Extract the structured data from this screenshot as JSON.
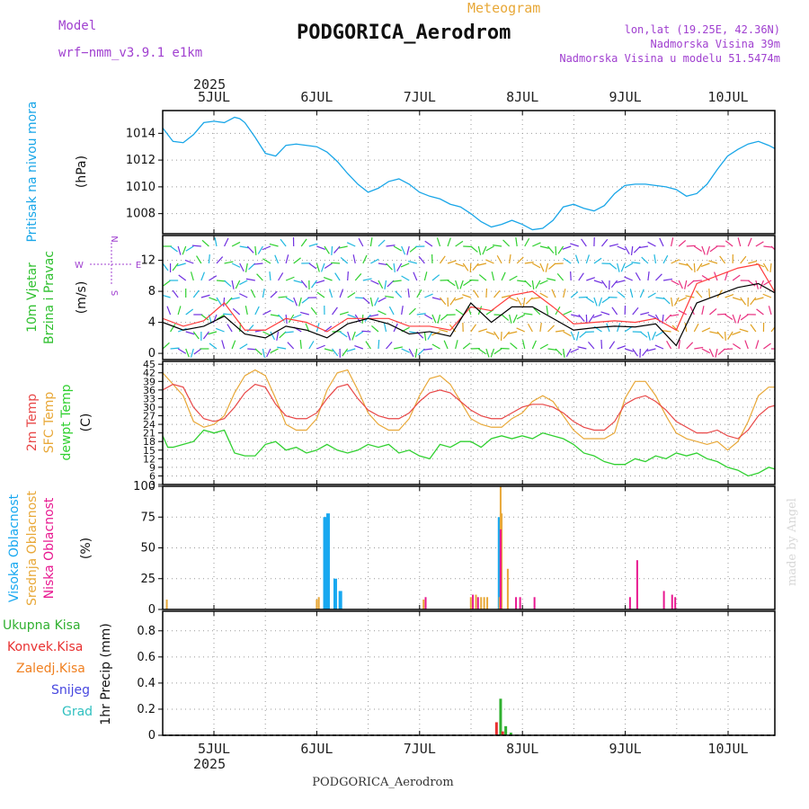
{
  "header": {
    "model_label": "Model",
    "model_value": "wrf−nmm_v3.9.1  e1km",
    "title": "PODGORICA_Aerodrom",
    "meteogram_label": "Meteogram",
    "coords": "lon,lat (19.25E, 42.36N)",
    "elev": "Nadmorska Visina 39m",
    "elev_model": "Nadmorska Visina u modelu 51.5474m",
    "year": "2025",
    "footer_title": "PODGORICA_Aerodrom",
    "watermark": "made by Angel"
  },
  "days": [
    "5JUL",
    "6JUL",
    "7JUL",
    "8JUL",
    "9JUL",
    "10JUL"
  ],
  "colors": {
    "pressure": "#19a6e8",
    "wind_speed": "#000000",
    "wind_gust": "#ff3c3c",
    "t2m": "#e84848",
    "sfc": "#e8a838",
    "dew": "#30d030",
    "high_cloud": "#18a8f0",
    "mid_cloud": "#e8a838",
    "low_cloud": "#e81890",
    "total_precip": "#30b030",
    "conv_precip": "#e83030",
    "freez_precip": "#f08020",
    "snow": "#4848e0",
    "grad": "#30c0c0"
  },
  "chart_data": [
    {
      "type": "line",
      "panel": "pressure",
      "ylabel_main": "Pritisak na nivou mora",
      "ylabel_unit": "(hPa)",
      "y_ticks": [
        "1008",
        "1010",
        "1012",
        "1014"
      ],
      "ylim": [
        1006.5,
        1015.7
      ],
      "x_days": [
        0.0,
        0.1,
        0.2,
        0.3,
        0.4,
        0.5,
        0.6,
        0.7,
        0.75,
        0.8,
        0.9,
        1.0,
        1.1,
        1.2,
        1.3,
        1.4,
        1.5,
        1.6,
        1.7,
        1.8,
        1.9,
        2.0,
        2.1,
        2.2,
        2.3,
        2.4,
        2.5,
        2.6,
        2.7,
        2.8,
        2.9,
        3.0,
        3.1,
        3.2,
        3.3,
        3.4,
        3.5,
        3.6,
        3.7,
        3.8,
        3.9,
        4.0,
        4.1,
        4.2,
        4.3,
        4.4,
        4.5,
        4.6,
        4.7,
        4.8,
        4.9,
        5.0,
        5.1,
        5.2,
        5.3,
        5.4,
        5.5,
        5.6,
        5.7,
        5.8,
        5.9,
        6.0
      ],
      "values": [
        1014.4,
        1013.4,
        1013.3,
        1013.9,
        1014.8,
        1014.9,
        1014.8,
        1015.2,
        1015.1,
        1014.8,
        1013.7,
        1012.5,
        1012.3,
        1013.1,
        1013.2,
        1013.1,
        1013.0,
        1012.6,
        1011.9,
        1011.0,
        1010.2,
        1009.6,
        1009.9,
        1010.4,
        1010.6,
        1010.2,
        1009.6,
        1009.3,
        1009.1,
        1008.7,
        1008.5,
        1008.0,
        1007.4,
        1007.0,
        1007.2,
        1007.5,
        1007.2,
        1006.8,
        1006.9,
        1007.5,
        1008.5,
        1008.7,
        1008.4,
        1008.2,
        1008.6,
        1009.5,
        1010.1,
        1010.2,
        1010.2,
        1010.1,
        1010.0,
        1009.8,
        1009.3,
        1009.5,
        1010.2,
        1011.3,
        1012.3,
        1012.8,
        1013.2,
        1013.4,
        1013.1,
        1012.7
      ]
    },
    {
      "type": "line",
      "panel": "wind",
      "ylabel_main": "10m Vjetar",
      "ylabel_sub": "Brzina i Pravac",
      "ylabel_unit": "(m/s)",
      "compass": {
        "north": "N",
        "south": "S",
        "east": "E",
        "west": "W"
      },
      "y_ticks": [
        "0",
        "4",
        "8",
        "12"
      ],
      "ylim": [
        -0.8,
        15.2
      ],
      "series": [
        {
          "name": "speed",
          "x_days": [
            0.0,
            0.2,
            0.4,
            0.6,
            0.8,
            1.0,
            1.2,
            1.4,
            1.6,
            1.8,
            2.0,
            2.2,
            2.4,
            2.6,
            2.8,
            3.0,
            3.2,
            3.4,
            3.6,
            3.8,
            4.0,
            4.2,
            4.4,
            4.6,
            4.8,
            5.0,
            5.2,
            5.4,
            5.6,
            5.8,
            6.0
          ],
          "values": [
            4.0,
            3.0,
            3.5,
            4.8,
            2.5,
            2.0,
            3.5,
            3.0,
            2.0,
            3.8,
            4.5,
            3.8,
            2.5,
            2.8,
            2.2,
            6.5,
            4.0,
            6.0,
            6.0,
            4.5,
            3.0,
            3.3,
            3.5,
            3.4,
            3.8,
            1.0,
            6.5,
            7.5,
            8.5,
            9.0,
            7.5
          ]
        },
        {
          "name": "gust",
          "x_days": [
            0.0,
            0.2,
            0.4,
            0.6,
            0.8,
            1.0,
            1.2,
            1.4,
            1.6,
            1.8,
            2.0,
            2.2,
            2.4,
            2.6,
            2.8,
            3.0,
            3.2,
            3.4,
            3.6,
            3.8,
            4.0,
            4.2,
            4.4,
            4.6,
            4.8,
            5.0,
            5.2,
            5.4,
            5.6,
            5.8,
            6.0
          ],
          "values": [
            4.5,
            3.5,
            4.2,
            6.5,
            3.0,
            3.0,
            4.5,
            4.0,
            2.8,
            4.5,
            4.5,
            4.5,
            3.5,
            3.5,
            3.0,
            6.0,
            5.5,
            7.5,
            8.0,
            6.0,
            3.8,
            4.0,
            4.2,
            4.0,
            4.5,
            3.0,
            9.0,
            10.0,
            11.0,
            11.5,
            7.0
          ]
        }
      ]
    },
    {
      "type": "line",
      "panel": "temperature",
      "ylabel_1": "2m Temp",
      "ylabel_2": "SFC Temp",
      "ylabel_3": "dewpt Temp",
      "ylabel_unit": "(C)",
      "y_ticks": [
        "3",
        "6",
        "9",
        "12",
        "15",
        "18",
        "21",
        "24",
        "27",
        "30",
        "33",
        "36",
        "39",
        "42",
        "45"
      ],
      "ylim": [
        3,
        46
      ],
      "series": [
        {
          "name": "t2m",
          "x_days": [
            0.0,
            0.1,
            0.2,
            0.3,
            0.4,
            0.5,
            0.6,
            0.7,
            0.8,
            0.9,
            1.0,
            1.1,
            1.2,
            1.3,
            1.4,
            1.5,
            1.6,
            1.7,
            1.8,
            1.9,
            2.0,
            2.1,
            2.2,
            2.3,
            2.4,
            2.5,
            2.6,
            2.7,
            2.8,
            2.9,
            3.0,
            3.1,
            3.2,
            3.3,
            3.4,
            3.5,
            3.6,
            3.7,
            3.8,
            3.9,
            4.0,
            4.1,
            4.2,
            4.3,
            4.4,
            4.5,
            4.6,
            4.7,
            4.8,
            4.9,
            5.0,
            5.1,
            5.2,
            5.3,
            5.4,
            5.5,
            5.6,
            5.7,
            5.8,
            5.9,
            6.0
          ],
          "values": [
            36,
            38,
            37,
            30,
            26,
            25,
            26,
            30,
            35,
            38,
            37,
            31,
            27,
            26,
            26,
            28,
            33,
            37,
            38,
            33,
            29,
            27,
            26,
            26,
            28,
            32,
            35,
            36,
            35,
            32,
            29,
            27,
            26,
            26,
            28,
            30,
            31,
            31,
            30,
            28,
            25,
            23,
            22,
            22,
            25,
            31,
            33,
            34,
            32,
            29,
            25,
            23,
            21,
            21,
            22,
            20,
            19,
            22,
            27,
            30,
            31
          ]
        },
        {
          "name": "sfc",
          "x_days": [
            0.0,
            0.1,
            0.2,
            0.3,
            0.4,
            0.5,
            0.6,
            0.7,
            0.8,
            0.9,
            1.0,
            1.1,
            1.2,
            1.3,
            1.4,
            1.5,
            1.6,
            1.7,
            1.8,
            1.9,
            2.0,
            2.1,
            2.2,
            2.3,
            2.4,
            2.5,
            2.6,
            2.7,
            2.8,
            2.9,
            3.0,
            3.1,
            3.2,
            3.3,
            3.4,
            3.5,
            3.6,
            3.7,
            3.8,
            3.9,
            4.0,
            4.1,
            4.2,
            4.3,
            4.4,
            4.5,
            4.6,
            4.7,
            4.8,
            4.9,
            5.0,
            5.1,
            5.2,
            5.3,
            5.4,
            5.5,
            5.6,
            5.7,
            5.8,
            5.9,
            6.0
          ],
          "values": [
            42,
            38,
            34,
            25,
            23,
            24,
            27,
            35,
            41,
            43,
            41,
            33,
            24,
            22,
            22,
            26,
            36,
            42,
            43,
            36,
            28,
            24,
            22,
            22,
            26,
            34,
            40,
            41,
            38,
            32,
            26,
            24,
            23,
            23,
            26,
            28,
            32,
            34,
            32,
            27,
            22,
            19,
            19,
            19,
            21,
            33,
            39,
            39,
            34,
            27,
            21,
            19,
            18,
            17,
            18,
            15,
            18,
            25,
            34,
            37,
            37
          ]
        },
        {
          "name": "dew",
          "x_days": [
            0.0,
            0.05,
            0.1,
            0.2,
            0.3,
            0.4,
            0.5,
            0.6,
            0.7,
            0.8,
            0.9,
            1.0,
            1.1,
            1.2,
            1.3,
            1.4,
            1.5,
            1.6,
            1.7,
            1.8,
            1.9,
            2.0,
            2.1,
            2.2,
            2.3,
            2.4,
            2.5,
            2.6,
            2.7,
            2.8,
            2.9,
            3.0,
            3.1,
            3.2,
            3.3,
            3.4,
            3.5,
            3.6,
            3.7,
            3.8,
            3.9,
            4.0,
            4.1,
            4.2,
            4.3,
            4.4,
            4.5,
            4.6,
            4.7,
            4.8,
            4.9,
            5.0,
            5.1,
            5.2,
            5.3,
            5.4,
            5.5,
            5.6,
            5.7,
            5.8,
            5.9,
            6.0
          ],
          "values": [
            20,
            16,
            16,
            17,
            18,
            22,
            21,
            22,
            14,
            13,
            13,
            17,
            18,
            15,
            16,
            14,
            15,
            17,
            15,
            14,
            15,
            17,
            16,
            17,
            14,
            15,
            13,
            12,
            17,
            16,
            18,
            18,
            16,
            19,
            20,
            19,
            20,
            19,
            21,
            20,
            19,
            17,
            14,
            13,
            11,
            10,
            10,
            12,
            11,
            13,
            12,
            14,
            13,
            14,
            12,
            11,
            9,
            8,
            6,
            7,
            9,
            8
          ]
        }
      ]
    },
    {
      "type": "bar",
      "panel": "clouds",
      "ylabel_1": "Visoka Oblacnost",
      "ylabel_2": "Srednja Oblacnost",
      "ylabel_3": "Niska Oblacnost",
      "ylabel_unit": "(%)",
      "y_ticks": [
        "0",
        "25",
        "50",
        "75",
        "100"
      ],
      "ylim": [
        0,
        100
      ],
      "series": [
        {
          "name": "high",
          "bars": [
            [
              1.58,
              75
            ],
            [
              1.61,
              78
            ],
            [
              1.68,
              25
            ],
            [
              1.73,
              15
            ],
            [
              3.28,
              75
            ]
          ]
        },
        {
          "name": "mid",
          "bars": [
            [
              0.04,
              8
            ],
            [
              1.5,
              8
            ],
            [
              1.52,
              10
            ],
            [
              2.54,
              8
            ],
            [
              3.28,
              10
            ],
            [
              3.0,
              10
            ],
            [
              3.05,
              12
            ],
            [
              3.29,
              100
            ],
            [
              3.3,
              78
            ],
            [
              3.36,
              33
            ],
            [
              3.1,
              10
            ],
            [
              3.13,
              10
            ],
            [
              3.16,
              10
            ]
          ]
        },
        {
          "name": "low",
          "bars": [
            [
              2.56,
              10
            ],
            [
              3.02,
              12
            ],
            [
              3.07,
              10
            ],
            [
              3.29,
              65
            ],
            [
              3.44,
              10
            ],
            [
              3.48,
              10
            ],
            [
              3.62,
              10
            ],
            [
              4.55,
              10
            ],
            [
              4.62,
              40
            ],
            [
              4.88,
              15
            ],
            [
              4.96,
              12
            ],
            [
              4.99,
              10
            ]
          ]
        }
      ]
    },
    {
      "type": "bar",
      "panel": "precipitation",
      "legend": [
        "Ukupna Kisa",
        "Konvek.Kisa",
        "Zaledj.Kisa",
        "Snijeg",
        "Grad"
      ],
      "ylabel_unit": "1hr Precip (mm)",
      "y_ticks": [
        "0",
        "0.2",
        "0.4",
        "0.6",
        "0.8"
      ],
      "ylim": [
        0,
        0.95
      ],
      "series": [
        {
          "name": "total",
          "bars": [
            [
              3.29,
              0.28
            ],
            [
              3.34,
              0.07
            ],
            [
              3.39,
              0.02
            ]
          ]
        },
        {
          "name": "conv",
          "bars": [
            [
              3.25,
              0.1
            ],
            [
              3.31,
              0.03
            ]
          ]
        }
      ]
    }
  ]
}
